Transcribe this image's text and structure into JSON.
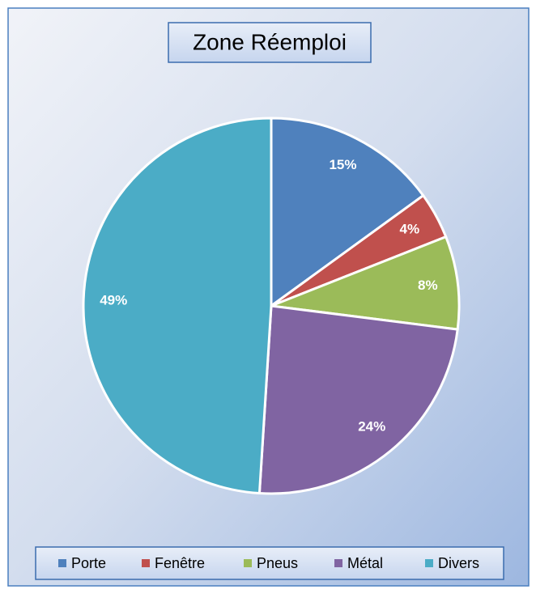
{
  "chart_data": {
    "type": "pie",
    "title": "Zone Réemploi",
    "categories": [
      "Porte",
      "Fenêtre",
      "Pneus",
      "Métal",
      "Divers"
    ],
    "values": [
      15,
      4,
      8,
      24,
      49
    ],
    "value_labels": [
      "15%",
      "4%",
      "8%",
      "24%",
      "49%"
    ],
    "colors": [
      "#4f81bd",
      "#c0504d",
      "#9bbb59",
      "#8064a2",
      "#4bacc6"
    ],
    "legend": "bottom"
  }
}
